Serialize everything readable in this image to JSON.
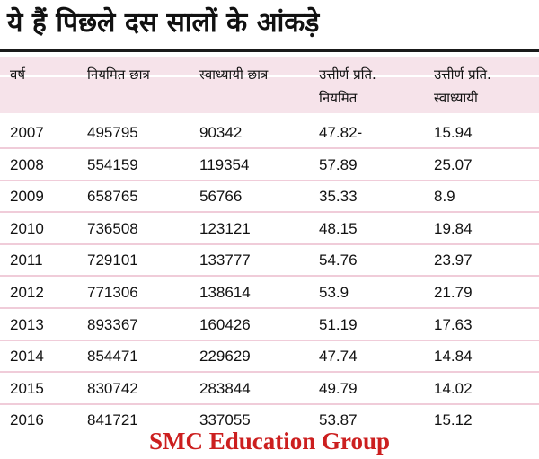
{
  "title": "ये हैं पिछले दस सालों के आंकड़े",
  "table": {
    "headers": [
      {
        "line1": "वर्ष",
        "line2": ""
      },
      {
        "line1": "नियमित छात्र",
        "line2": ""
      },
      {
        "line1": "स्वाध्यायी छात्र",
        "line2": ""
      },
      {
        "line1": "उत्तीर्ण प्रति.",
        "line2": "नियमित"
      },
      {
        "line1": "उत्तीर्ण प्रति.",
        "line2": "स्वाध्यायी"
      }
    ],
    "rows": [
      [
        "2007",
        "495795",
        "90342",
        "47.82-",
        "15.94"
      ],
      [
        "2008",
        "554159",
        "119354",
        "57.89",
        "25.07"
      ],
      [
        "2009",
        "658765",
        "56766",
        "35.33",
        "8.9"
      ],
      [
        "2010",
        "736508",
        "123121",
        "48.15",
        "19.84"
      ],
      [
        "2011",
        "729101",
        "133777",
        "54.76",
        "23.97"
      ],
      [
        "2012",
        "771306",
        "138614",
        "53.9",
        "21.79"
      ],
      [
        "2013",
        "893367",
        "160426",
        "51.19",
        "17.63"
      ],
      [
        "2014",
        "854471",
        "229629",
        "47.74",
        "14.84"
      ],
      [
        "2015",
        "830742",
        "283844",
        "49.79",
        "14.02"
      ],
      [
        "2016",
        "841721",
        "337055",
        "53.87",
        "15.12"
      ]
    ]
  },
  "watermark": "SMC Education Group",
  "colors": {
    "header_band": "#f6e3ea",
    "row_separator": "#f0ccd9",
    "watermark": "#cc1f1f"
  }
}
